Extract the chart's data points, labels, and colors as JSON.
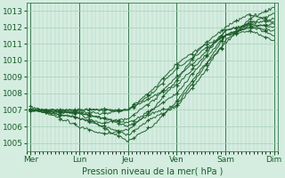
{
  "xlabel": "Pression niveau de la mer( hPa )",
  "ylim": [
    1004.5,
    1013.5
  ],
  "yticks": [
    1005,
    1006,
    1007,
    1008,
    1009,
    1010,
    1011,
    1012,
    1013
  ],
  "xtick_labels": [
    "Mer",
    "Lun",
    "Jeu",
    "Ven",
    "Sam",
    "Dim"
  ],
  "xtick_pos": [
    0,
    24,
    48,
    72,
    96,
    120
  ],
  "bg_color": "#d4ede0",
  "grid_color": "#aacfbc",
  "line_color": "#1a5c28",
  "figsize": [
    3.2,
    2.0
  ],
  "dpi": 100,
  "lines": [
    {
      "points": [
        [
          0,
          1007.0
        ],
        [
          24,
          1006.8
        ],
        [
          36,
          1005.9
        ],
        [
          48,
          1005.1
        ],
        [
          60,
          1006.0
        ],
        [
          72,
          1007.5
        ],
        [
          84,
          1009.5
        ],
        [
          96,
          1011.0
        ],
        [
          108,
          1012.5
        ],
        [
          120,
          1013.2
        ]
      ]
    },
    {
      "points": [
        [
          0,
          1007.0
        ],
        [
          24,
          1006.5
        ],
        [
          36,
          1006.0
        ],
        [
          48,
          1005.5
        ],
        [
          60,
          1006.5
        ],
        [
          72,
          1007.2
        ],
        [
          84,
          1009.0
        ],
        [
          96,
          1011.2
        ],
        [
          108,
          1012.3
        ],
        [
          120,
          1012.8
        ]
      ]
    },
    {
      "points": [
        [
          0,
          1007.0
        ],
        [
          24,
          1006.8
        ],
        [
          36,
          1006.5
        ],
        [
          48,
          1006.0
        ],
        [
          60,
          1006.8
        ],
        [
          72,
          1007.3
        ],
        [
          84,
          1009.3
        ],
        [
          96,
          1011.5
        ],
        [
          108,
          1012.0
        ],
        [
          120,
          1012.2
        ]
      ]
    },
    {
      "points": [
        [
          0,
          1007.0
        ],
        [
          24,
          1007.0
        ],
        [
          36,
          1007.0
        ],
        [
          48,
          1007.0
        ],
        [
          60,
          1007.8
        ],
        [
          72,
          1008.5
        ],
        [
          84,
          1010.0
        ],
        [
          96,
          1011.8
        ],
        [
          108,
          1012.2
        ],
        [
          120,
          1012.0
        ]
      ]
    },
    {
      "points": [
        [
          0,
          1007.0
        ],
        [
          24,
          1007.0
        ],
        [
          36,
          1007.0
        ],
        [
          48,
          1007.0
        ],
        [
          60,
          1008.0
        ],
        [
          72,
          1009.5
        ],
        [
          84,
          1010.5
        ],
        [
          96,
          1011.5
        ],
        [
          108,
          1012.1
        ],
        [
          120,
          1011.5
        ]
      ]
    },
    {
      "points": [
        [
          0,
          1007.0
        ],
        [
          24,
          1006.5
        ],
        [
          36,
          1006.2
        ],
        [
          48,
          1006.5
        ],
        [
          60,
          1007.5
        ],
        [
          72,
          1009.0
        ],
        [
          84,
          1010.2
        ],
        [
          96,
          1011.8
        ],
        [
          108,
          1012.2
        ],
        [
          120,
          1012.5
        ]
      ]
    },
    {
      "points": [
        [
          0,
          1007.0
        ],
        [
          24,
          1006.8
        ],
        [
          36,
          1006.5
        ],
        [
          48,
          1006.2
        ],
        [
          60,
          1007.0
        ],
        [
          72,
          1008.0
        ],
        [
          84,
          1009.8
        ],
        [
          96,
          1011.5
        ],
        [
          108,
          1012.0
        ],
        [
          120,
          1011.8
        ]
      ]
    },
    {
      "points": [
        [
          0,
          1007.2
        ],
        [
          24,
          1006.0
        ],
        [
          36,
          1005.5
        ],
        [
          48,
          1005.8
        ],
        [
          60,
          1007.0
        ],
        [
          72,
          1008.8
        ],
        [
          84,
          1010.8
        ],
        [
          96,
          1012.0
        ],
        [
          108,
          1012.8
        ],
        [
          120,
          1012.3
        ]
      ]
    },
    {
      "points": [
        [
          0,
          1007.0
        ],
        [
          24,
          1006.9
        ],
        [
          36,
          1006.8
        ],
        [
          48,
          1007.0
        ],
        [
          60,
          1008.2
        ],
        [
          72,
          1009.8
        ],
        [
          84,
          1010.8
        ],
        [
          96,
          1011.5
        ],
        [
          108,
          1011.8
        ],
        [
          120,
          1011.2
        ]
      ]
    }
  ]
}
